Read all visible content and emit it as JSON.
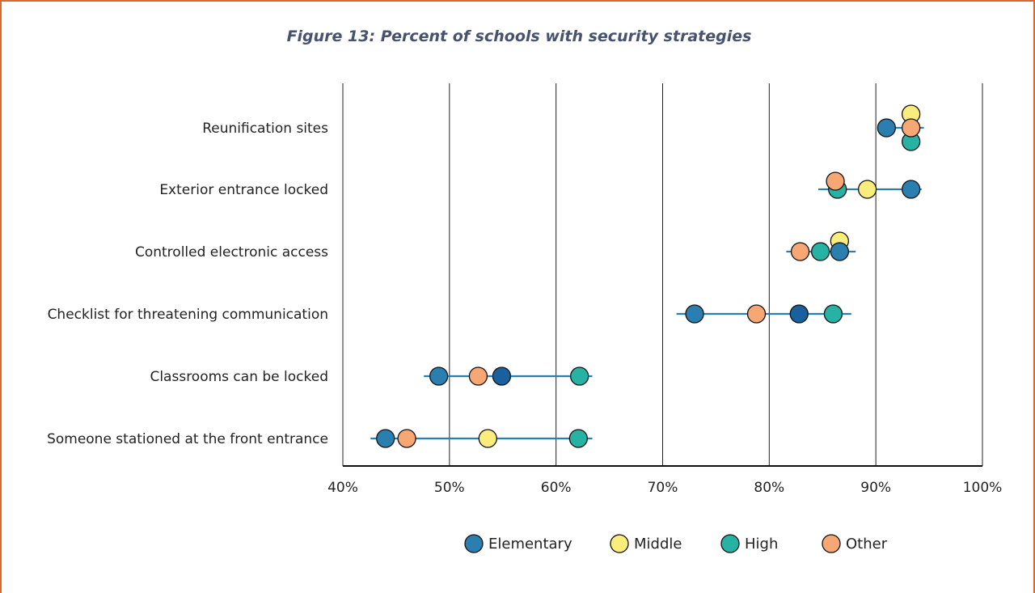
{
  "chart_data": {
    "type": "dot",
    "title": "Figure 13: Percent of schools with security strategies",
    "xlabel": "",
    "ylabel": "",
    "xlim": [
      40,
      100
    ],
    "x_ticks": [
      40,
      50,
      60,
      70,
      80,
      90,
      100
    ],
    "x_tick_labels": [
      "40%",
      "50%",
      "60%",
      "70%",
      "80%",
      "90%",
      "100%"
    ],
    "grid": "vertical",
    "legend_position": "bottom",
    "categories": [
      "Reunification sites",
      "Exterior entrance locked",
      "Controlled electronic access",
      "Checklist for threatening communication",
      "Classrooms can be locked",
      "Someone stationed at the front entrance"
    ],
    "series": [
      {
        "name": "Elementary",
        "color": "#2b7fb0",
        "values": [
          91,
          93.3,
          86.6,
          73,
          49,
          44
        ]
      },
      {
        "name": "Middle",
        "color": "#fbed7b",
        "values": [
          93.3,
          89.2,
          86.6,
          null,
          null,
          53.6
        ]
      },
      {
        "name": "High",
        "color": "#27b3a4",
        "values": [
          93.3,
          86.4,
          84.8,
          86,
          62.2,
          62.1
        ]
      },
      {
        "name": "Other",
        "color": "#f7a774",
        "values": [
          93.3,
          86.2,
          82.9,
          78.8,
          52.7,
          46
        ]
      }
    ],
    "unlabeled_points": [
      {
        "category": "Checklist for threatening communication",
        "value": 82.8,
        "color": "#18619e"
      },
      {
        "category": "Classrooms can be locked",
        "value": 54.9,
        "color": "#18619e"
      }
    ],
    "range_lines": [
      {
        "category": "Reunification sites",
        "range": [
          90.5,
          94.5
        ]
      },
      {
        "category": "Exterior entrance locked",
        "range": [
          84.6,
          94.3
        ]
      },
      {
        "category": "Controlled electronic access",
        "range": [
          81.6,
          88.1
        ]
      },
      {
        "category": "Checklist for threatening communication",
        "range": [
          71.3,
          87.7
        ]
      },
      {
        "category": "Classrooms can be locked",
        "range": [
          47.6,
          63.4
        ]
      },
      {
        "category": "Someone stationed at the front entrance",
        "range": [
          42.6,
          63.4
        ]
      }
    ],
    "line_color": "#2b7fb0"
  }
}
